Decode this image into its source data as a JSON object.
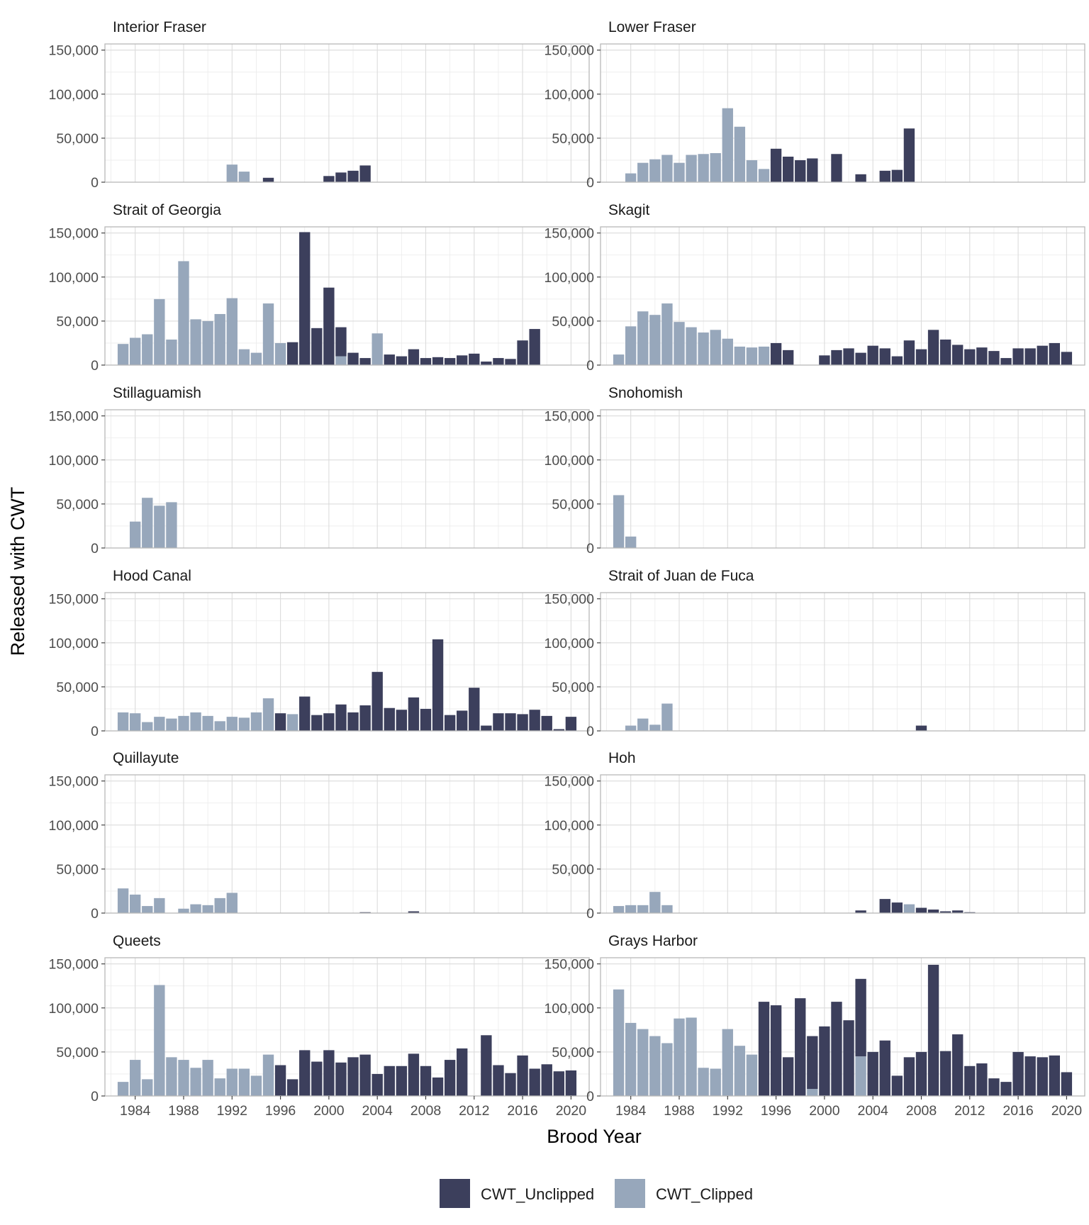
{
  "chart_data": {
    "type": "bar",
    "stacked": true,
    "xlabel": "Brood Year",
    "ylabel": "Released with CWT",
    "xlim": [
      1981.5,
      2021.5
    ],
    "ylim": [
      0,
      157000
    ],
    "x_ticks": [
      1984,
      1988,
      1992,
      1996,
      2000,
      2004,
      2008,
      2012,
      2016,
      2020
    ],
    "x_tick_labels": [
      "1984",
      "1988",
      "1992",
      "1996",
      "2000",
      "2004",
      "2008",
      "2012",
      "2016",
      "2020"
    ],
    "y_ticks": [
      0,
      50000,
      100000,
      150000
    ],
    "y_tick_labels": [
      "0",
      "50,000",
      "100,000",
      "150,000"
    ],
    "grid": true,
    "legend": {
      "position": "bottom",
      "entries": [
        {
          "name": "CWT_Unclipped",
          "color": "#3c3f5c"
        },
        {
          "name": "CWT_Clipped",
          "color": "#97a7bb"
        }
      ]
    },
    "panels": [
      {
        "title": "Interior Fraser",
        "unclipped": [
          [
            1995,
            5000
          ],
          [
            2000,
            7000
          ],
          [
            2001,
            11000
          ],
          [
            2002,
            13000
          ],
          [
            2003,
            19000
          ]
        ],
        "clipped": [
          [
            1992,
            20000
          ],
          [
            1993,
            12000
          ]
        ]
      },
      {
        "title": "Lower Fraser",
        "unclipped": [
          [
            1996,
            38000
          ],
          [
            1997,
            29000
          ],
          [
            1998,
            25000
          ],
          [
            1999,
            27000
          ],
          [
            2001,
            32000
          ],
          [
            2003,
            9000
          ],
          [
            2005,
            13000
          ],
          [
            2006,
            14000
          ],
          [
            2007,
            61000
          ]
        ],
        "clipped": [
          [
            1984,
            10000
          ],
          [
            1985,
            22000
          ],
          [
            1986,
            26000
          ],
          [
            1987,
            31000
          ],
          [
            1988,
            22000
          ],
          [
            1989,
            31000
          ],
          [
            1990,
            32000
          ],
          [
            1991,
            33000
          ],
          [
            1992,
            84000
          ],
          [
            1993,
            63000
          ],
          [
            1994,
            25000
          ],
          [
            1995,
            15000
          ]
        ]
      },
      {
        "title": "Strait of Georgia",
        "unclipped": [
          [
            1997,
            26000
          ],
          [
            1998,
            151000
          ],
          [
            1999,
            42000
          ],
          [
            2000,
            88000
          ],
          [
            2001,
            33000
          ],
          [
            2002,
            14000
          ],
          [
            2003,
            8000
          ],
          [
            2005,
            12000
          ],
          [
            2006,
            10000
          ],
          [
            2007,
            18000
          ],
          [
            2008,
            8000
          ],
          [
            2009,
            9000
          ],
          [
            2010,
            8000
          ],
          [
            2011,
            11000
          ],
          [
            2012,
            13000
          ],
          [
            2013,
            4000
          ],
          [
            2014,
            8000
          ],
          [
            2015,
            7000
          ],
          [
            2016,
            28000
          ],
          [
            2017,
            41000
          ]
        ],
        "clipped": [
          [
            1983,
            24000
          ],
          [
            1984,
            31000
          ],
          [
            1985,
            35000
          ],
          [
            1986,
            75000
          ],
          [
            1987,
            29000
          ],
          [
            1988,
            118000
          ],
          [
            1989,
            52000
          ],
          [
            1990,
            50000
          ],
          [
            1991,
            58000
          ],
          [
            1992,
            76000
          ],
          [
            1993,
            18000
          ],
          [
            1994,
            14000
          ],
          [
            1995,
            70000
          ],
          [
            1996,
            25000
          ],
          [
            2001,
            10000
          ],
          [
            2004,
            36000
          ]
        ]
      },
      {
        "title": "Skagit",
        "unclipped": [
          [
            1996,
            25000
          ],
          [
            1997,
            17000
          ],
          [
            2000,
            11000
          ],
          [
            2001,
            17000
          ],
          [
            2002,
            19000
          ],
          [
            2003,
            14000
          ],
          [
            2004,
            22000
          ],
          [
            2005,
            19000
          ],
          [
            2006,
            10000
          ],
          [
            2007,
            28000
          ],
          [
            2008,
            18000
          ],
          [
            2009,
            40000
          ],
          [
            2010,
            29000
          ],
          [
            2011,
            23000
          ],
          [
            2012,
            18000
          ],
          [
            2013,
            20000
          ],
          [
            2014,
            16000
          ],
          [
            2015,
            8000
          ],
          [
            2016,
            19000
          ],
          [
            2017,
            19000
          ],
          [
            2018,
            22000
          ],
          [
            2019,
            25000
          ],
          [
            2020,
            15000
          ]
        ],
        "clipped": [
          [
            1983,
            12000
          ],
          [
            1984,
            44000
          ],
          [
            1985,
            61000
          ],
          [
            1986,
            57000
          ],
          [
            1987,
            70000
          ],
          [
            1988,
            49000
          ],
          [
            1989,
            43000
          ],
          [
            1990,
            37000
          ],
          [
            1991,
            40000
          ],
          [
            1992,
            30000
          ],
          [
            1993,
            21000
          ],
          [
            1994,
            20000
          ],
          [
            1995,
            21000
          ]
        ]
      },
      {
        "title": "Stillaguamish",
        "unclipped": [],
        "clipped": [
          [
            1984,
            30000
          ],
          [
            1985,
            57000
          ],
          [
            1986,
            48000
          ],
          [
            1987,
            52000
          ]
        ]
      },
      {
        "title": "Snohomish",
        "unclipped": [],
        "clipped": [
          [
            1983,
            60000
          ],
          [
            1984,
            13000
          ]
        ]
      },
      {
        "title": "Hood Canal",
        "unclipped": [
          [
            1996,
            20000
          ],
          [
            1998,
            39000
          ],
          [
            1999,
            18000
          ],
          [
            2000,
            20000
          ],
          [
            2001,
            30000
          ],
          [
            2002,
            21000
          ],
          [
            2003,
            29000
          ],
          [
            2004,
            67000
          ],
          [
            2005,
            26000
          ],
          [
            2006,
            24000
          ],
          [
            2007,
            38000
          ],
          [
            2008,
            25000
          ],
          [
            2009,
            104000
          ],
          [
            2010,
            18000
          ],
          [
            2011,
            23000
          ],
          [
            2012,
            49000
          ],
          [
            2013,
            6000
          ],
          [
            2014,
            20000
          ],
          [
            2015,
            20000
          ],
          [
            2016,
            19000
          ],
          [
            2017,
            24000
          ],
          [
            2018,
            17000
          ],
          [
            2019,
            2000
          ],
          [
            2020,
            16000
          ]
        ],
        "clipped": [
          [
            1983,
            21000
          ],
          [
            1984,
            20000
          ],
          [
            1985,
            10000
          ],
          [
            1986,
            16000
          ],
          [
            1987,
            14000
          ],
          [
            1988,
            17000
          ],
          [
            1989,
            21000
          ],
          [
            1990,
            17000
          ],
          [
            1991,
            11000
          ],
          [
            1992,
            16000
          ],
          [
            1993,
            15000
          ],
          [
            1994,
            21000
          ],
          [
            1995,
            37000
          ],
          [
            1997,
            19000
          ]
        ]
      },
      {
        "title": "Strait of Juan de Fuca",
        "unclipped": [
          [
            2008,
            6000
          ]
        ],
        "clipped": [
          [
            1984,
            6000
          ],
          [
            1985,
            14000
          ],
          [
            1986,
            7000
          ],
          [
            1987,
            31000
          ]
        ]
      },
      {
        "title": "Quillayute",
        "unclipped": [
          [
            2003,
            1000
          ],
          [
            2007,
            2000
          ]
        ],
        "clipped": [
          [
            1983,
            28000
          ],
          [
            1984,
            21000
          ],
          [
            1985,
            8000
          ],
          [
            1986,
            17000
          ],
          [
            1988,
            5000
          ],
          [
            1989,
            10000
          ],
          [
            1990,
            9000
          ],
          [
            1991,
            17000
          ],
          [
            1992,
            23000
          ]
        ]
      },
      {
        "title": "Hoh",
        "unclipped": [
          [
            2003,
            3000
          ],
          [
            2005,
            16000
          ],
          [
            2006,
            12000
          ],
          [
            2008,
            6000
          ],
          [
            2009,
            4000
          ],
          [
            2010,
            2000
          ],
          [
            2011,
            3000
          ],
          [
            2012,
            1000
          ]
        ],
        "clipped": [
          [
            1983,
            8000
          ],
          [
            1984,
            9000
          ],
          [
            1985,
            9000
          ],
          [
            1986,
            24000
          ],
          [
            1987,
            9000
          ],
          [
            2007,
            10000
          ]
        ]
      },
      {
        "title": "Queets",
        "unclipped": [
          [
            1996,
            35000
          ],
          [
            1997,
            19000
          ],
          [
            1998,
            52000
          ],
          [
            1999,
            39000
          ],
          [
            2000,
            52000
          ],
          [
            2001,
            38000
          ],
          [
            2002,
            44000
          ],
          [
            2003,
            47000
          ],
          [
            2004,
            25000
          ],
          [
            2005,
            34000
          ],
          [
            2006,
            34000
          ],
          [
            2007,
            48000
          ],
          [
            2008,
            34000
          ],
          [
            2009,
            21000
          ],
          [
            2010,
            41000
          ],
          [
            2011,
            54000
          ],
          [
            2013,
            69000
          ],
          [
            2014,
            35000
          ],
          [
            2015,
            26000
          ],
          [
            2016,
            46000
          ],
          [
            2017,
            31000
          ],
          [
            2018,
            36000
          ],
          [
            2019,
            28000
          ],
          [
            2020,
            29000
          ]
        ],
        "clipped": [
          [
            1983,
            16000
          ],
          [
            1984,
            41000
          ],
          [
            1985,
            19000
          ],
          [
            1986,
            126000
          ],
          [
            1987,
            44000
          ],
          [
            1988,
            41000
          ],
          [
            1989,
            32000
          ],
          [
            1990,
            41000
          ],
          [
            1991,
            20000
          ],
          [
            1992,
            31000
          ],
          [
            1993,
            31000
          ],
          [
            1994,
            23000
          ],
          [
            1995,
            47000
          ]
        ]
      },
      {
        "title": "Grays Harbor",
        "unclipped": [
          [
            1995,
            107000
          ],
          [
            1996,
            103000
          ],
          [
            1997,
            44000
          ],
          [
            1998,
            111000
          ],
          [
            1999,
            60000
          ],
          [
            2000,
            79000
          ],
          [
            2001,
            107000
          ],
          [
            2002,
            86000
          ],
          [
            2003,
            88000
          ],
          [
            2004,
            50000
          ],
          [
            2005,
            63000
          ],
          [
            2006,
            23000
          ],
          [
            2007,
            44000
          ],
          [
            2008,
            50000
          ],
          [
            2009,
            149000
          ],
          [
            2010,
            51000
          ],
          [
            2011,
            70000
          ],
          [
            2012,
            34000
          ],
          [
            2013,
            37000
          ],
          [
            2014,
            20000
          ],
          [
            2015,
            16000
          ],
          [
            2016,
            50000
          ],
          [
            2017,
            45000
          ],
          [
            2018,
            44000
          ],
          [
            2019,
            46000
          ],
          [
            2020,
            27000
          ]
        ],
        "clipped": [
          [
            1983,
            121000
          ],
          [
            1984,
            83000
          ],
          [
            1985,
            76000
          ],
          [
            1986,
            68000
          ],
          [
            1987,
            60000
          ],
          [
            1988,
            88000
          ],
          [
            1989,
            89000
          ],
          [
            1990,
            32000
          ],
          [
            1991,
            31000
          ],
          [
            1992,
            76000
          ],
          [
            1993,
            57000
          ],
          [
            1994,
            47000
          ],
          [
            1999,
            8000
          ],
          [
            2003,
            45000
          ]
        ]
      }
    ]
  }
}
